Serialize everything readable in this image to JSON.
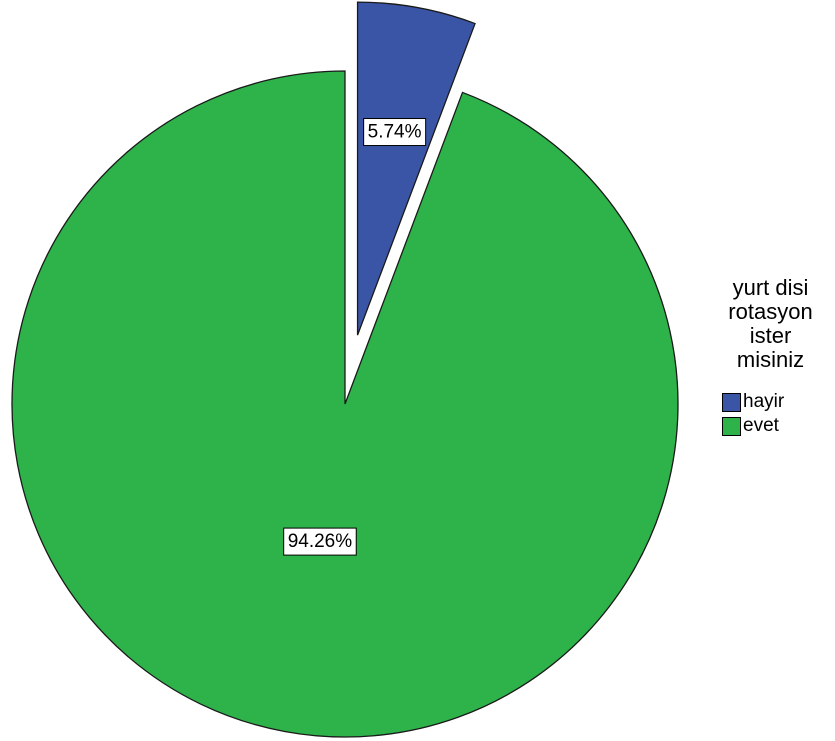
{
  "chart_data": {
    "type": "pie",
    "legend_title_lines": [
      "yurt disi",
      "rotasyon",
      "ister",
      "misiniz"
    ],
    "legend_placement": "right",
    "slices": [
      {
        "label": "hayir",
        "value": 5.74,
        "value_label": "5.74%",
        "color": "#3a55a6",
        "exploded": true
      },
      {
        "label": "evet",
        "value": 94.26,
        "value_label": "94.26%",
        "color": "#2db34a",
        "exploded": false
      }
    ]
  }
}
